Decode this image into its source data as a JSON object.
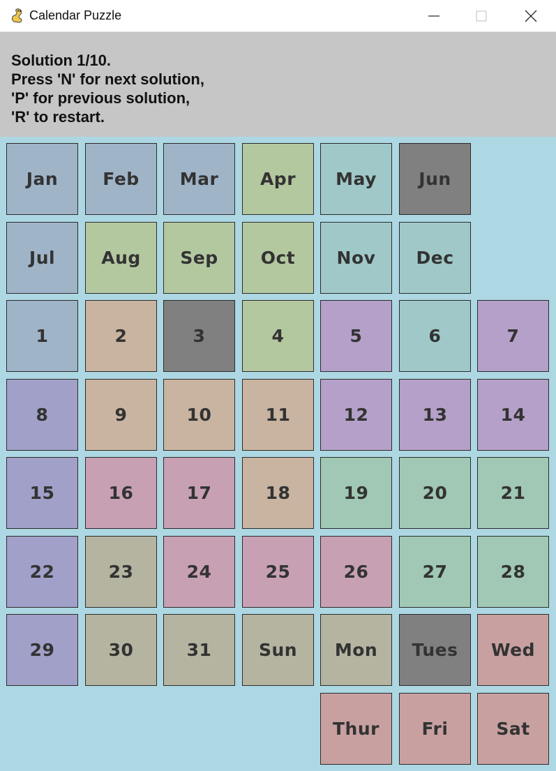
{
  "window": {
    "title": "Calendar Puzzle",
    "icon": "pygame-snake-icon",
    "controls": [
      "minimize-icon",
      "maximize-icon",
      "close-icon"
    ]
  },
  "info": {
    "lines": [
      "Solution 1/10.",
      "Press 'N' for next solution,",
      "'P' for previous solution,",
      "'R' to restart."
    ]
  },
  "colors": {
    "board_background": "#add8e3",
    "info_background": "#c6c6c6",
    "highlight_gray": "#808080",
    "piece_steel_blue": "#a0b4c8",
    "piece_sage": "#b4c8a0",
    "piece_teal": "#a0c8c8",
    "piece_tan": "#c8b4a0",
    "piece_lavender": "#b4a0c8",
    "piece_periwinkle": "#a0a0c8",
    "piece_rose": "#c8a0b4",
    "piece_mint": "#a0c8b4",
    "piece_khaki": "#b4b4a0",
    "piece_salmon": "#c8a0a0"
  },
  "board": {
    "rows": [
      [
        {
          "label": "Jan",
          "color": "#a0b4c8"
        },
        {
          "label": "Feb",
          "color": "#a0b4c8"
        },
        {
          "label": "Mar",
          "color": "#a0b4c8"
        },
        {
          "label": "Apr",
          "color": "#b4c8a0"
        },
        {
          "label": "May",
          "color": "#a0c8c8"
        },
        {
          "label": "Jun",
          "color": "#808080"
        },
        null
      ],
      [
        {
          "label": "Jul",
          "color": "#a0b4c8"
        },
        {
          "label": "Aug",
          "color": "#b4c8a0"
        },
        {
          "label": "Sep",
          "color": "#b4c8a0"
        },
        {
          "label": "Oct",
          "color": "#b4c8a0"
        },
        {
          "label": "Nov",
          "color": "#a0c8c8"
        },
        {
          "label": "Dec",
          "color": "#a0c8c8"
        },
        null
      ],
      [
        {
          "label": "1",
          "color": "#a0b4c8"
        },
        {
          "label": "2",
          "color": "#c8b4a0"
        },
        {
          "label": "3",
          "color": "#808080"
        },
        {
          "label": "4",
          "color": "#b4c8a0"
        },
        {
          "label": "5",
          "color": "#b4a0c8"
        },
        {
          "label": "6",
          "color": "#a0c8c8"
        },
        {
          "label": "7",
          "color": "#b4a0c8"
        }
      ],
      [
        {
          "label": "8",
          "color": "#a0a0c8"
        },
        {
          "label": "9",
          "color": "#c8b4a0"
        },
        {
          "label": "10",
          "color": "#c8b4a0"
        },
        {
          "label": "11",
          "color": "#c8b4a0"
        },
        {
          "label": "12",
          "color": "#b4a0c8"
        },
        {
          "label": "13",
          "color": "#b4a0c8"
        },
        {
          "label": "14",
          "color": "#b4a0c8"
        }
      ],
      [
        {
          "label": "15",
          "color": "#a0a0c8"
        },
        {
          "label": "16",
          "color": "#c8a0b4"
        },
        {
          "label": "17",
          "color": "#c8a0b4"
        },
        {
          "label": "18",
          "color": "#c8b4a0"
        },
        {
          "label": "19",
          "color": "#a0c8b4"
        },
        {
          "label": "20",
          "color": "#a0c8b4"
        },
        {
          "label": "21",
          "color": "#a0c8b4"
        }
      ],
      [
        {
          "label": "22",
          "color": "#a0a0c8"
        },
        {
          "label": "23",
          "color": "#b4b4a0"
        },
        {
          "label": "24",
          "color": "#c8a0b4"
        },
        {
          "label": "25",
          "color": "#c8a0b4"
        },
        {
          "label": "26",
          "color": "#c8a0b4"
        },
        {
          "label": "27",
          "color": "#a0c8b4"
        },
        {
          "label": "28",
          "color": "#a0c8b4"
        }
      ],
      [
        {
          "label": "29",
          "color": "#a0a0c8"
        },
        {
          "label": "30",
          "color": "#b4b4a0"
        },
        {
          "label": "31",
          "color": "#b4b4a0"
        },
        {
          "label": "Sun",
          "color": "#b4b4a0"
        },
        {
          "label": "Mon",
          "color": "#b4b4a0"
        },
        {
          "label": "Tues",
          "color": "#808080"
        },
        {
          "label": "Wed",
          "color": "#c8a0a0"
        }
      ],
      [
        null,
        null,
        null,
        null,
        {
          "label": "Thur",
          "color": "#c8a0a0"
        },
        {
          "label": "Fri",
          "color": "#c8a0a0"
        },
        {
          "label": "Sat",
          "color": "#c8a0a0"
        }
      ]
    ]
  }
}
